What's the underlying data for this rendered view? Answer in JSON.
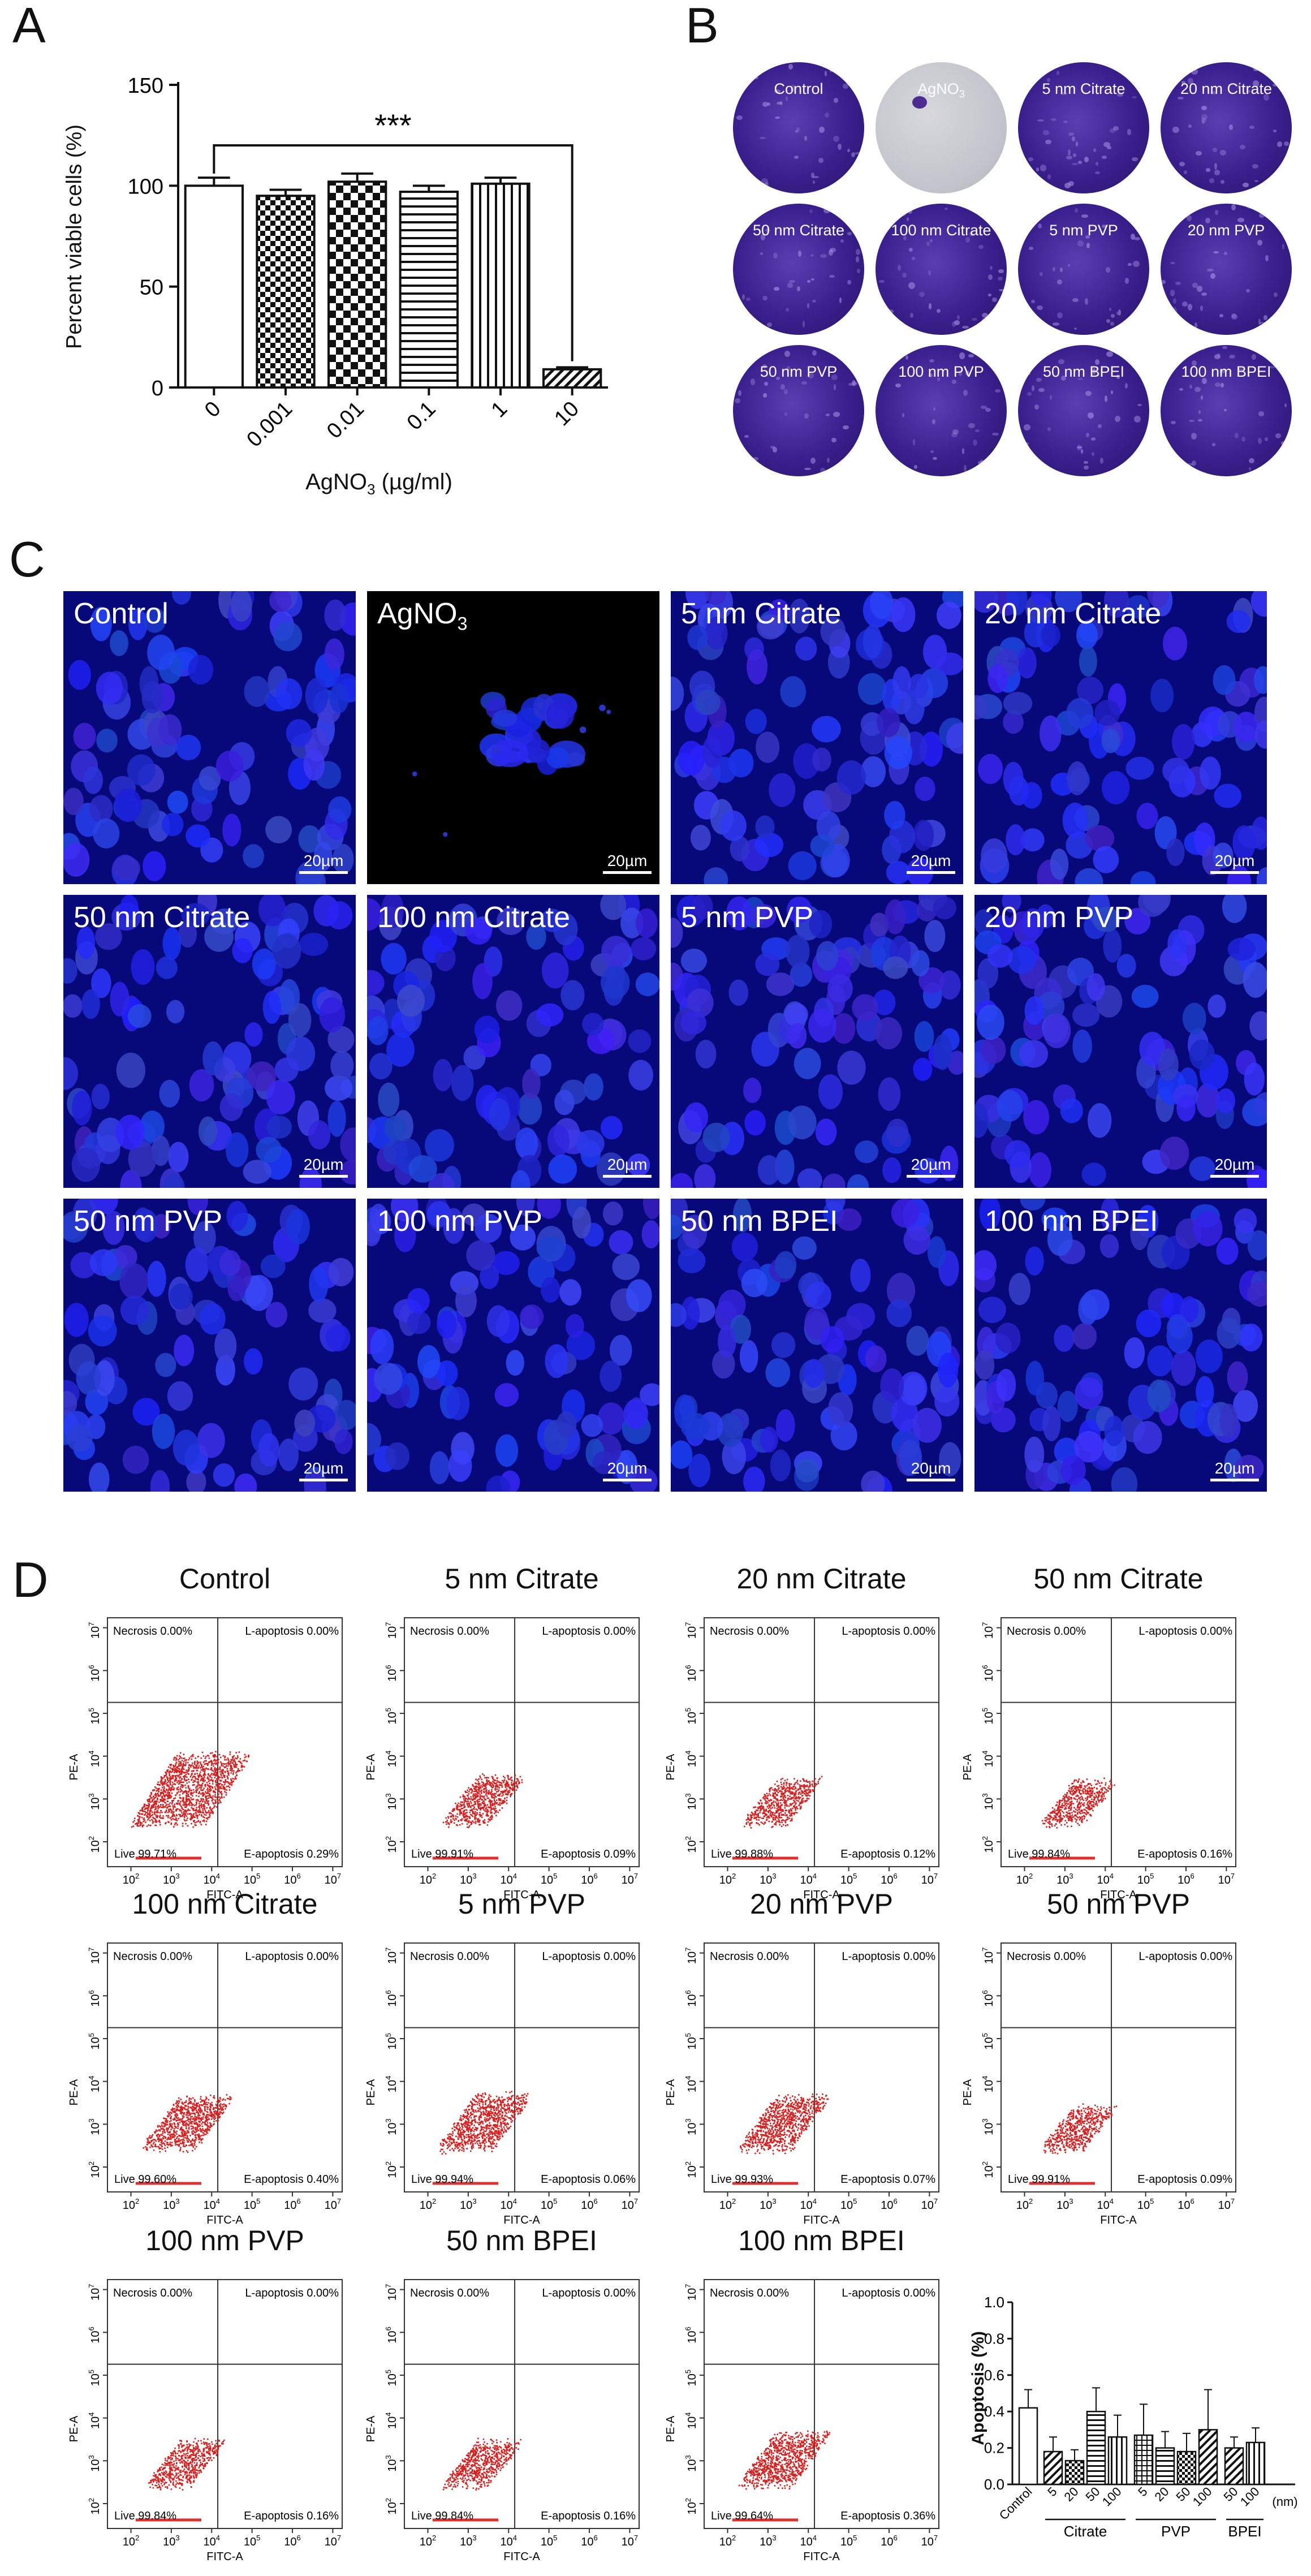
{
  "panel_labels": [
    "A",
    "B",
    "C",
    "D"
  ],
  "panel_a": {
    "ylabel": "Percent viable cells (%)",
    "xlabel": "AgNO",
    "xlabel_sub": "3",
    "xlabel_unit": " (µg/ml)",
    "significance": "***"
  },
  "panel_b": {
    "dishes": [
      {
        "label": "Control",
        "sub": ""
      },
      {
        "label": "AgNO",
        "sub": "3"
      },
      {
        "label": "5 nm Citrate",
        "sub": ""
      },
      {
        "label": "20 nm Citrate",
        "sub": ""
      },
      {
        "label": "50 nm Citrate",
        "sub": ""
      },
      {
        "label": "100 nm Citrate",
        "sub": ""
      },
      {
        "label": "5 nm PVP",
        "sub": ""
      },
      {
        "label": "20 nm PVP",
        "sub": ""
      },
      {
        "label": "50 nm PVP",
        "sub": ""
      },
      {
        "label": "100 nm PVP",
        "sub": ""
      },
      {
        "label": "50 nm BPEI",
        "sub": ""
      },
      {
        "label": "100 nm BPEI",
        "sub": ""
      }
    ]
  },
  "panel_c": {
    "scale_label": "20µm",
    "images": [
      {
        "label": "Control",
        "sub": ""
      },
      {
        "label": "AgNO",
        "sub": "3"
      },
      {
        "label": "5 nm Citrate",
        "sub": ""
      },
      {
        "label": "20 nm Citrate",
        "sub": ""
      },
      {
        "label": "50 nm Citrate",
        "sub": ""
      },
      {
        "label": "100 nm  Citrate",
        "sub": ""
      },
      {
        "label": "5 nm PVP",
        "sub": ""
      },
      {
        "label": "20 nm PVP",
        "sub": ""
      },
      {
        "label": "50 nm PVP",
        "sub": ""
      },
      {
        "label": "100 nm PVP",
        "sub": ""
      },
      {
        "label": "50 nm BPEI",
        "sub": ""
      },
      {
        "label": "100 nm BPEI",
        "sub": ""
      }
    ]
  },
  "panel_d": {
    "x_axis_label": "FITC-A",
    "y_axis_label": "PE-A",
    "tick_labels": [
      "10",
      "10",
      "10",
      "10",
      "10",
      "10"
    ],
    "x_tick_exp": [
      "2",
      "3",
      "4",
      "5",
      "6",
      "7"
    ],
    "y_tick_exp": [
      "2",
      "3",
      "4",
      "5",
      "6",
      "7"
    ],
    "plots": [
      {
        "title": "Control",
        "necrosis": "Necrosis 0.00%",
        "lapop": "L-apoptosis 0.00%",
        "eapop": "E-apoptosis 0.29%",
        "live": "Live 99.71%",
        "density": 1.0
      },
      {
        "title": "5 nm Citrate",
        "necrosis": "Necrosis 0.00%",
        "lapop": "L-apoptosis 0.00%",
        "eapop": "E-apoptosis 0.09%",
        "live": "Live 99.91%",
        "density": 0.4
      },
      {
        "title": "20 nm Citrate",
        "necrosis": "Necrosis 0.00%",
        "lapop": "L-apoptosis 0.00%",
        "eapop": "E-apoptosis 0.12%",
        "live": "Live 99.88%",
        "density": 0.35
      },
      {
        "title": "50 nm Citrate",
        "necrosis": "Necrosis 0.00%",
        "lapop": "L-apoptosis 0.00%",
        "eapop": "E-apoptosis 0.16%",
        "live": "Live 99.84%",
        "density": 0.3
      },
      {
        "title": "100 nm Citrate",
        "necrosis": "Necrosis 0.00%",
        "lapop": "L-apoptosis 0.00%",
        "eapop": "E-apoptosis 0.40%",
        "live": "Live 99.60%",
        "density": 0.55
      },
      {
        "title": "5 nm PVP",
        "necrosis": "Necrosis 0.00%",
        "lapop": "L-apoptosis 0.00%",
        "eapop": "E-apoptosis 0.06%",
        "live": "Live 99.94%",
        "density": 0.6
      },
      {
        "title": "20 nm PVP",
        "necrosis": "Necrosis 0.00%",
        "lapop": "L-apoptosis 0.00%",
        "eapop": "E-apoptosis 0.07%",
        "live": "Live 99.93%",
        "density": 0.55
      },
      {
        "title": "50 nm PVP",
        "necrosis": "Necrosis 0.00%",
        "lapop": "L-apoptosis 0.00%",
        "eapop": "E-apoptosis 0.09%",
        "live": "Live 99.91%",
        "density": 0.3
      },
      {
        "title": "100 nm PVP",
        "necrosis": "Necrosis 0.00%",
        "lapop": "L-apoptosis 0.00%",
        "eapop": "E-apoptosis 0.16%",
        "live": "Live 99.84%",
        "density": 0.35
      },
      {
        "title": "50 nm BPEI",
        "necrosis": "Necrosis 0.00%",
        "lapop": "L-apoptosis 0.00%",
        "eapop": "E-apoptosis 0.16%",
        "live": "Live 99.84%",
        "density": 0.35
      },
      {
        "title": "100 nm BPEI",
        "necrosis": "Necrosis 0.00%",
        "lapop": "L-apoptosis 0.00%",
        "eapop": "E-apoptosis 0.36%",
        "live": "Live 99.64%",
        "density": 0.55
      }
    ],
    "group_labels": [
      "Citrate",
      "PVP",
      "BPEI"
    ],
    "unit_label": "(nm)"
  },
  "chart_data": [
    {
      "type": "bar",
      "categories": [
        "0",
        "0.001",
        "0.01",
        "0.1",
        "1",
        "10"
      ],
      "values": [
        100,
        95,
        102,
        97,
        101,
        9
      ],
      "errors": [
        4,
        3,
        4,
        3,
        3,
        1
      ],
      "ylim": [
        0,
        150
      ],
      "yticks": [
        "0",
        "50",
        "100",
        "150"
      ],
      "title": "",
      "ylabel": "Percent viable cells (%)",
      "xlabel": "AgNO3 (µg/ml)"
    },
    {
      "type": "bar",
      "categories": [
        "Control",
        "5",
        "20",
        "50",
        "100",
        "5",
        "20",
        "50",
        "100",
        "50",
        "100"
      ],
      "values": [
        0.42,
        0.18,
        0.13,
        0.4,
        0.26,
        0.27,
        0.2,
        0.18,
        0.3,
        0.2,
        0.23
      ],
      "errors": [
        0.1,
        0.08,
        0.06,
        0.13,
        0.12,
        0.17,
        0.09,
        0.1,
        0.22,
        0.06,
        0.08
      ],
      "ylim": [
        0,
        1.0
      ],
      "yticks": [
        "0.0",
        "0.2",
        "0.4",
        "0.6",
        "0.8",
        "1.0"
      ],
      "ylabel": "Apoptosis (%)",
      "xlabel": ""
    }
  ]
}
